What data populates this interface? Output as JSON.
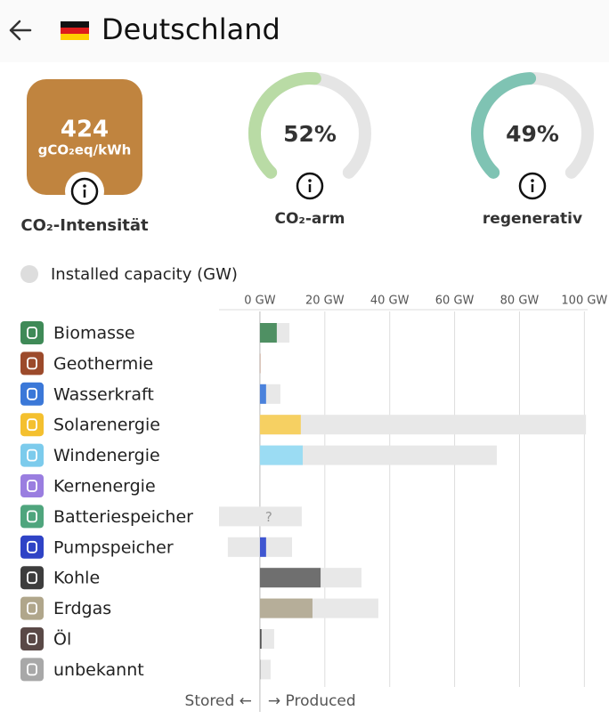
{
  "header": {
    "title": "Deutschland"
  },
  "intensity": {
    "value": 424,
    "unit": "gCO₂eq/kWh",
    "label": "CO₂-Intensität",
    "color": "#c0843f"
  },
  "gauges": [
    {
      "value": 52,
      "value_label": "52%",
      "label": "CO₂-arm",
      "color": "#b9dba5"
    },
    {
      "value": 49,
      "value_label": "49%",
      "label": "regenerativ",
      "color": "#7fc3b3"
    }
  ],
  "chart_data": {
    "type": "bar",
    "orientation": "horizontal",
    "toggle_label": "Installed capacity (GW)",
    "categories": [
      "Biomasse",
      "Geothermie",
      "Wasserkraft",
      "Solarenergie",
      "Windenergie",
      "Kernenergie",
      "Batteriespeicher",
      "Pumpspeicher",
      "Kohle",
      "Erdgas",
      "Öl",
      "unbekannt"
    ],
    "icon_colors": [
      "#3f8a57",
      "#9c4a2b",
      "#3b78d8",
      "#f4c02f",
      "#7ccbec",
      "#9a7ee0",
      "#4fa57d",
      "#2f43c6",
      "#3d3d3d",
      "#b0a68b",
      "#5a4947",
      "#a8a8a8"
    ],
    "values": [
      5.2,
      0.1,
      1.9,
      12.6,
      13.2,
      0,
      null,
      1.9,
      18.7,
      16.2,
      0.5,
      0.3
    ],
    "value_labels": [
      null,
      null,
      null,
      null,
      null,
      null,
      "?",
      null,
      null,
      null,
      null,
      null
    ],
    "colors": [
      "#4f9063",
      "#a0522d",
      "#4b82dc",
      "#f6d062",
      "#9bdcf3",
      "#a88de6",
      "#5bb08a",
      "#3f56d1",
      "#6f6f6f",
      "#b6ae99",
      "#555555",
      "#bbbbbb"
    ],
    "capacity_min": [
      0,
      0,
      0,
      0,
      0,
      0,
      -12.6,
      -9.9,
      0,
      0,
      0,
      0
    ],
    "capacity_max": [
      9.1,
      0.1,
      6.3,
      100.5,
      73.0,
      0,
      12.9,
      9.9,
      31.3,
      36.5,
      4.4,
      3.3
    ],
    "capacity_color": "#e8e8e8",
    "xlim": [
      -12.6,
      101
    ],
    "xticks": [
      {
        "value": 0,
        "label": "0 GW"
      },
      {
        "value": 20,
        "label": "20 GW"
      },
      {
        "value": 40,
        "label": "40 GW"
      },
      {
        "value": 60,
        "label": "60 GW"
      },
      {
        "value": 80,
        "label": "80 GW"
      },
      {
        "value": 100,
        "label": "100 GW"
      }
    ],
    "grid": true,
    "footer_left": "Stored ←",
    "footer_right": "→ Produced"
  }
}
